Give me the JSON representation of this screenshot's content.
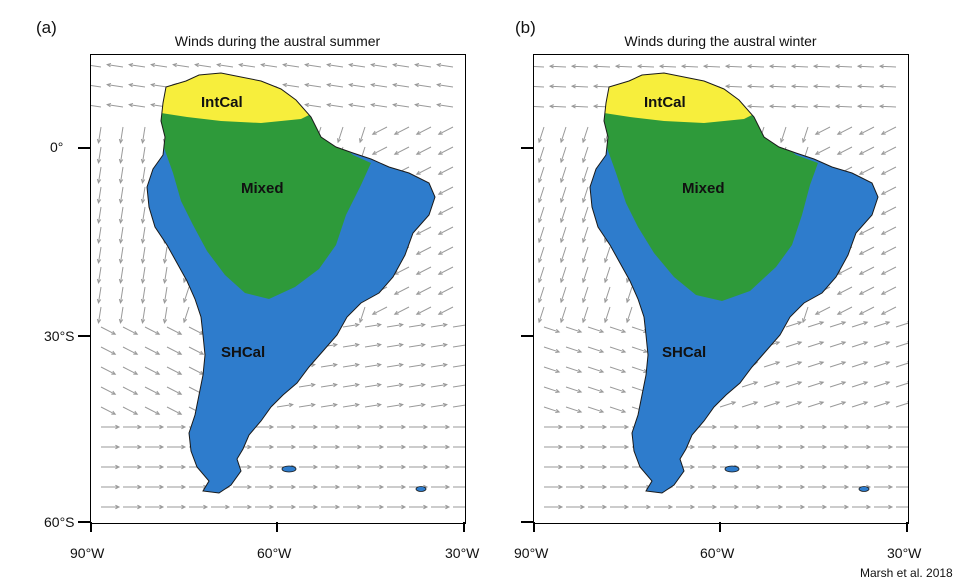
{
  "panels": [
    {
      "letter": "(a)",
      "title": "Winds during the austral summer",
      "labels": {
        "north": "IntCal",
        "middle": "Mixed",
        "south": "SHCal"
      },
      "wind_field": "summer"
    },
    {
      "letter": "(b)",
      "title": "Winds during the austral winter",
      "labels": {
        "north": "IntCal",
        "middle": "Mixed",
        "south": "SHCal"
      },
      "wind_field": "winter"
    }
  ],
  "axes": {
    "lat_labels": [
      "0°",
      "30°S",
      "60°S"
    ],
    "lon_labels": [
      "90°W",
      "60°W",
      "30°W"
    ]
  },
  "colors": {
    "intcal": "#f7ee3c",
    "mixed": "#2e9a3a",
    "shcal": "#2e7ccc",
    "land_outline": "#1a1a1a",
    "wind_arrow": "#9a9a9a"
  },
  "credit": "Marsh et al. 2018"
}
